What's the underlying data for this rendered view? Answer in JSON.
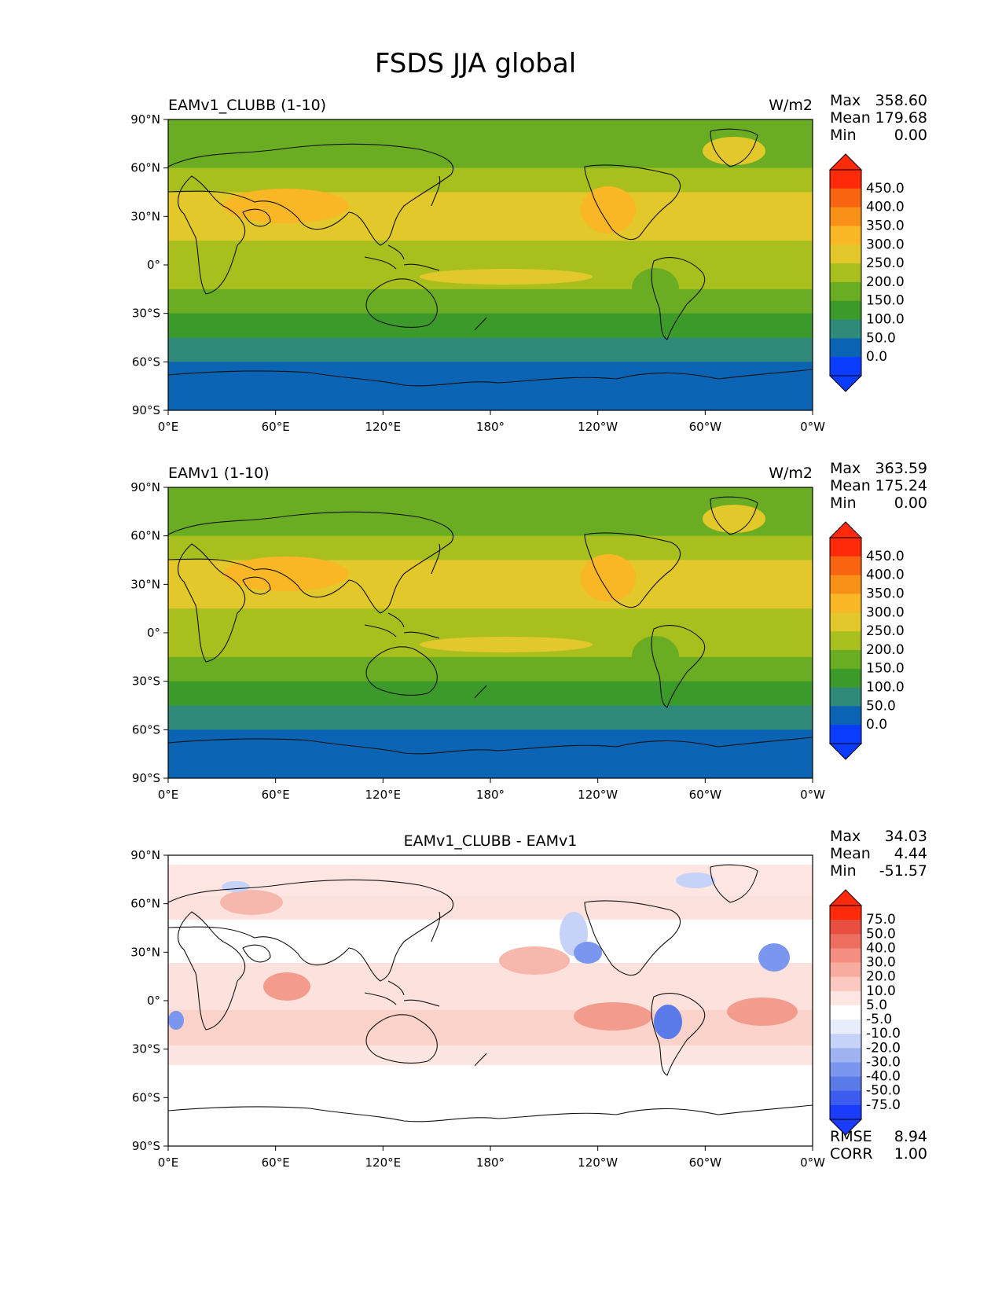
{
  "figure_title": "FSDS JJA global",
  "lon_ticks": [
    "0°E",
    "60°E",
    "120°E",
    "180°",
    "120°W",
    "60°W",
    "0°W"
  ],
  "lat_ticks": [
    "90°N",
    "60°N",
    "30°N",
    "0°",
    "30°S",
    "60°S",
    "90°S"
  ],
  "stat_labels": {
    "max": "Max",
    "mean": "Mean",
    "min": "Min",
    "rmse": "RMSE",
    "corr": "CORR"
  },
  "colors": {
    "coast": "#111111",
    "abs_levels": [
      "#0a3cff",
      "#0b64b3",
      "#2f8a7a",
      "#3c9a2a",
      "#6aad22",
      "#a8bf1e",
      "#e2c82a",
      "#f9b625",
      "#f99018",
      "#f96410",
      "#ff2a0a"
    ],
    "diff_levels": [
      "#1a3cff",
      "#3c5cf0",
      "#5a7ae8",
      "#7a96ee",
      "#9fb3f2",
      "#c6d2f7",
      "#e8edfb",
      "#ffffff",
      "#ffe6e2",
      "#fcc9c0",
      "#f8aca0",
      "#f48e80",
      "#ee6f60",
      "#e84f40",
      "#ff2a0a"
    ]
  },
  "chart_data": [
    {
      "type": "heatmap",
      "title": "EAMv1_CLUBB (1-10)",
      "units": "W/m2",
      "stats": {
        "max": "358.60",
        "mean": "179.68",
        "min": "0.00"
      },
      "colorbar_levels": [
        "450.0",
        "400.0",
        "350.0",
        "300.0",
        "250.0",
        "200.0",
        "150.0",
        "100.0",
        "50.0",
        "0.0"
      ],
      "xlim": [
        0,
        360
      ],
      "ylim": [
        -90,
        90
      ],
      "zonal_profile": {
        "lat": [
          90,
          75,
          60,
          45,
          30,
          15,
          0,
          -15,
          -30,
          -45,
          -60,
          -75,
          -90
        ],
        "value": [
          160,
          175,
          200,
          240,
          280,
          270,
          220,
          200,
          160,
          90,
          40,
          10,
          0
        ]
      }
    },
    {
      "type": "heatmap",
      "title": "EAMv1 (1-10)",
      "units": "W/m2",
      "stats": {
        "max": "363.59",
        "mean": "175.24",
        "min": "0.00"
      },
      "colorbar_levels": [
        "450.0",
        "400.0",
        "350.0",
        "300.0",
        "250.0",
        "200.0",
        "150.0",
        "100.0",
        "50.0",
        "0.0"
      ],
      "xlim": [
        0,
        360
      ],
      "ylim": [
        -90,
        90
      ],
      "zonal_profile": {
        "lat": [
          90,
          75,
          60,
          45,
          30,
          15,
          0,
          -15,
          -30,
          -45,
          -60,
          -75,
          -90
        ],
        "value": [
          160,
          170,
          195,
          235,
          275,
          265,
          215,
          195,
          155,
          85,
          40,
          10,
          0
        ]
      }
    },
    {
      "type": "heatmap",
      "title": "EAMv1_CLUBB - EAMv1",
      "units": "",
      "stats": {
        "max": "34.03",
        "mean": "4.44",
        "min": "-51.57",
        "rmse": "8.94",
        "corr": "1.00"
      },
      "colorbar_levels": [
        "75.0",
        "50.0",
        "40.0",
        "30.0",
        "20.0",
        "10.0",
        "5.0",
        "-5.0",
        "-10.0",
        "-20.0",
        "-30.0",
        "-40.0",
        "-50.0",
        "-75.0"
      ],
      "xlim": [
        0,
        360
      ],
      "ylim": [
        -90,
        90
      ]
    }
  ]
}
